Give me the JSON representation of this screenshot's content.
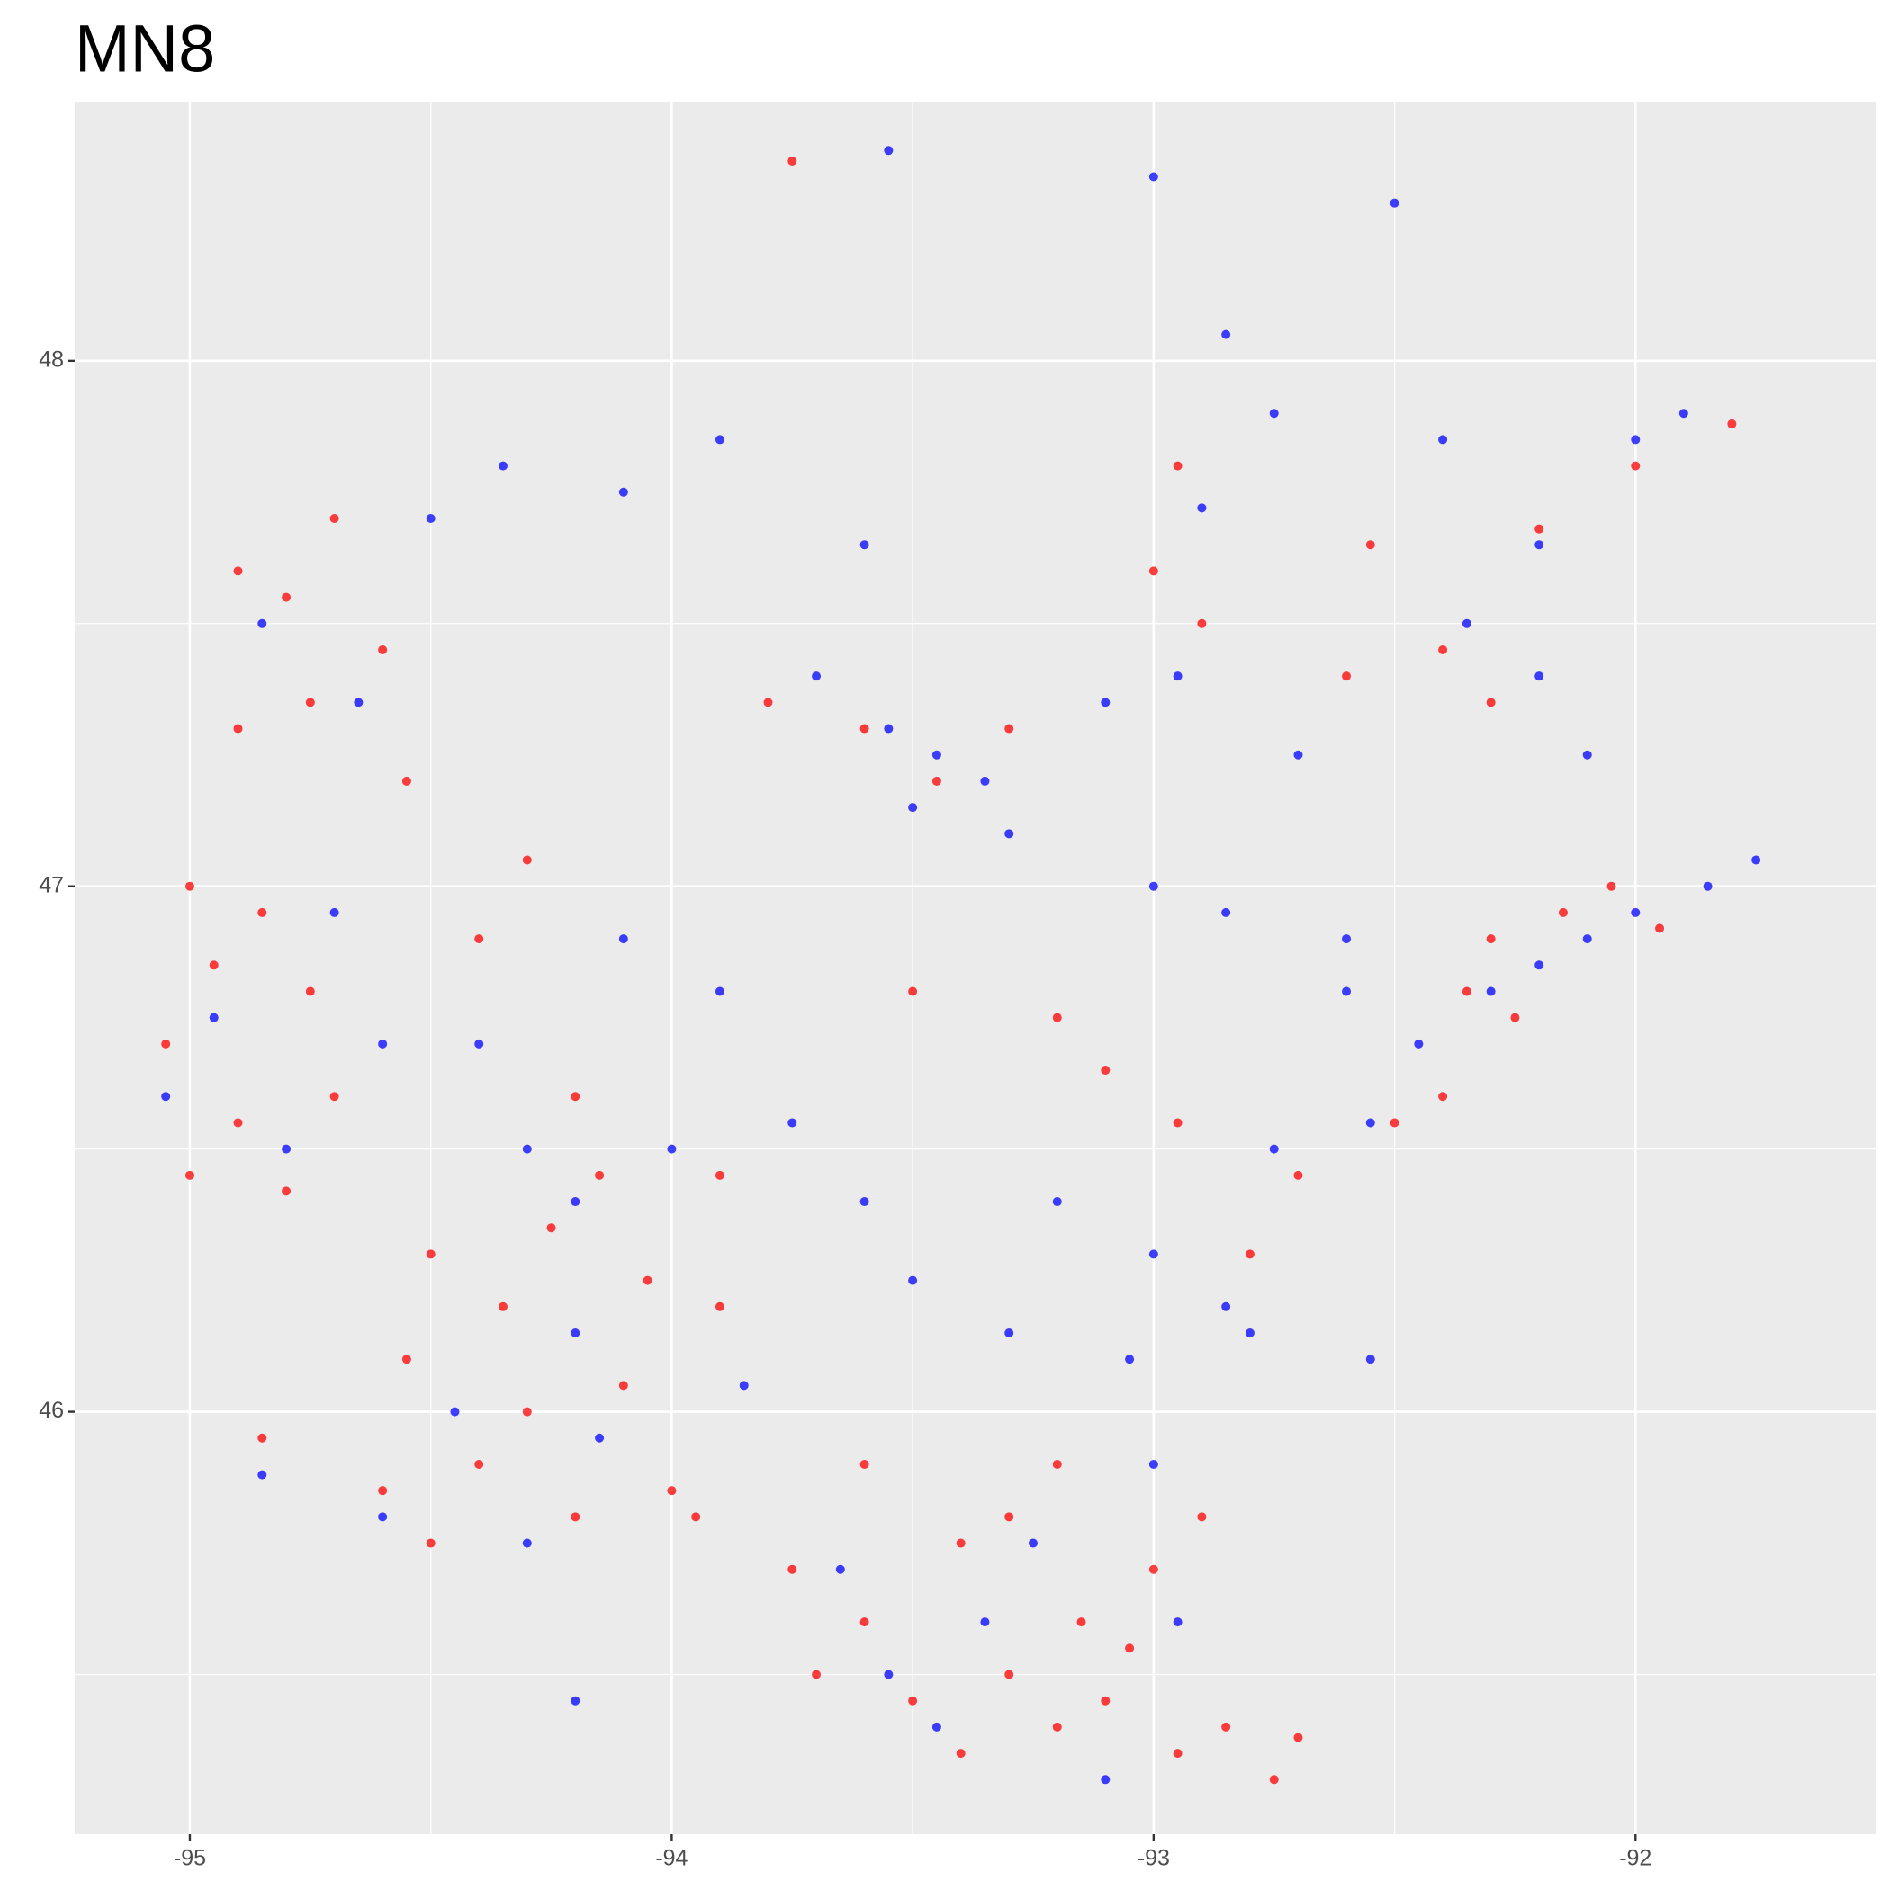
{
  "chart_data": {
    "type": "scatter",
    "title": "MN8",
    "xlim": [
      -95.239,
      -91.5
    ],
    "ylim": [
      45.196,
      48.493
    ],
    "xticks": [
      -95,
      -94,
      -93,
      -92
    ],
    "yticks": [
      46,
      47,
      48
    ],
    "xminor": [
      -94.5,
      -93.5,
      -92.5
    ],
    "yminor": [
      45.5,
      46.5,
      47.5
    ],
    "grid": true,
    "series": [
      {
        "color": "#ff0000",
        "x": [
          -95.0,
          -94.95,
          -95.05,
          -94.9,
          -94.85,
          -94.75,
          -94.7,
          -95.0,
          -94.8,
          -94.9,
          -94.75,
          -94.9,
          -94.8,
          -94.7,
          -94.6,
          -94.55,
          -94.5,
          -94.55,
          -94.6,
          -94.5,
          -94.4,
          -94.3,
          -94.35,
          -94.25,
          -94.15,
          -94.2,
          -94.05,
          -94.1,
          -94.0,
          -93.95,
          -94.2,
          -93.75,
          -93.7,
          -93.6,
          -93.5,
          -93.4,
          -93.3,
          -93.2,
          -93.15,
          -93.1,
          -93.05,
          -93.3,
          -93.2,
          -93.0,
          -92.95,
          -92.85,
          -92.75,
          -92.7,
          -92.9,
          -93.4,
          -93.6,
          -92.35,
          -92.25,
          -92.3,
          -92.15,
          -92.05,
          -91.95,
          -92.4,
          -92.5,
          -92.7,
          -92.8,
          -92.6,
          -92.4,
          -92.3,
          -92.55,
          -92.2,
          -92.9,
          -92.95,
          -93.0,
          -93.6,
          -93.45,
          -93.3,
          -93.8,
          -93.5,
          -93.2,
          -92.95,
          -93.9,
          -94.3,
          -94.4,
          -94.85,
          -93.75,
          -92.0,
          -91.8,
          -93.9,
          -93.1
        ],
        "y": [
          47.0,
          46.85,
          46.7,
          46.55,
          46.95,
          46.8,
          46.6,
          46.45,
          46.42,
          47.3,
          47.35,
          47.6,
          47.55,
          47.7,
          47.45,
          47.2,
          46.3,
          46.1,
          45.85,
          45.75,
          45.9,
          46.0,
          46.2,
          46.35,
          46.45,
          46.6,
          46.25,
          46.05,
          45.85,
          45.8,
          45.8,
          45.7,
          45.5,
          45.6,
          45.45,
          45.35,
          45.5,
          45.4,
          45.6,
          45.45,
          45.55,
          45.8,
          45.9,
          45.7,
          45.35,
          45.4,
          45.3,
          45.38,
          45.8,
          45.75,
          45.9,
          46.8,
          46.75,
          46.9,
          46.95,
          47.0,
          46.92,
          46.6,
          46.55,
          46.45,
          46.3,
          47.4,
          47.45,
          47.35,
          47.65,
          47.68,
          47.5,
          47.8,
          47.6,
          47.3,
          47.2,
          47.3,
          47.35,
          46.8,
          46.75,
          46.55,
          46.45,
          47.05,
          46.9,
          45.95,
          48.38,
          47.8,
          47.88,
          46.2,
          46.65
        ]
      },
      {
        "color": "#0000ff",
        "x": [
          -95.05,
          -94.95,
          -94.8,
          -94.7,
          -94.6,
          -94.85,
          -94.65,
          -94.5,
          -94.35,
          -94.1,
          -93.9,
          -93.6,
          -93.45,
          -93.5,
          -93.35,
          -93.55,
          -93.7,
          -93.3,
          -93.1,
          -92.95,
          -93.0,
          -92.85,
          -92.9,
          -92.85,
          -92.5,
          -92.75,
          -92.4,
          -92.0,
          -91.9,
          -92.2,
          -92.1,
          -92.2,
          -92.35,
          -92.2,
          -92.1,
          -92.0,
          -91.85,
          -91.75,
          -92.3,
          -92.45,
          -92.6,
          -92.55,
          -92.75,
          -92.85,
          -93.0,
          -93.2,
          -93.3,
          -93.5,
          -93.6,
          -93.75,
          -94.0,
          -94.2,
          -94.3,
          -94.4,
          -94.1,
          -93.9,
          -93.65,
          -93.55,
          -93.35,
          -93.25,
          -93.0,
          -92.95,
          -93.1,
          -93.45,
          -93.05,
          -92.55,
          -92.8,
          -94.15,
          -94.45,
          -94.6,
          -94.3,
          -94.2,
          -93.85,
          -94.85,
          -94.2,
          -93.55,
          -93.0,
          -92.6,
          -92.7
        ],
        "y": [
          46.6,
          46.75,
          46.5,
          46.95,
          46.7,
          47.5,
          47.35,
          47.7,
          47.8,
          47.75,
          47.85,
          47.65,
          47.25,
          47.15,
          47.2,
          47.3,
          47.4,
          47.1,
          47.35,
          47.4,
          47.0,
          46.95,
          47.72,
          48.05,
          48.3,
          47.9,
          47.85,
          47.85,
          47.9,
          47.65,
          47.25,
          47.4,
          47.5,
          46.85,
          46.9,
          46.95,
          47.0,
          47.05,
          46.8,
          46.7,
          46.8,
          46.55,
          46.5,
          46.2,
          46.3,
          46.4,
          46.15,
          46.25,
          46.4,
          46.55,
          46.5,
          46.4,
          46.5,
          46.7,
          46.9,
          46.8,
          45.7,
          45.5,
          45.6,
          45.75,
          45.9,
          45.6,
          45.3,
          45.4,
          46.1,
          46.1,
          46.15,
          45.95,
          46.0,
          45.8,
          45.75,
          46.15,
          46.05,
          45.88,
          45.45,
          48.4,
          48.35,
          46.9,
          47.25
        ]
      }
    ]
  }
}
